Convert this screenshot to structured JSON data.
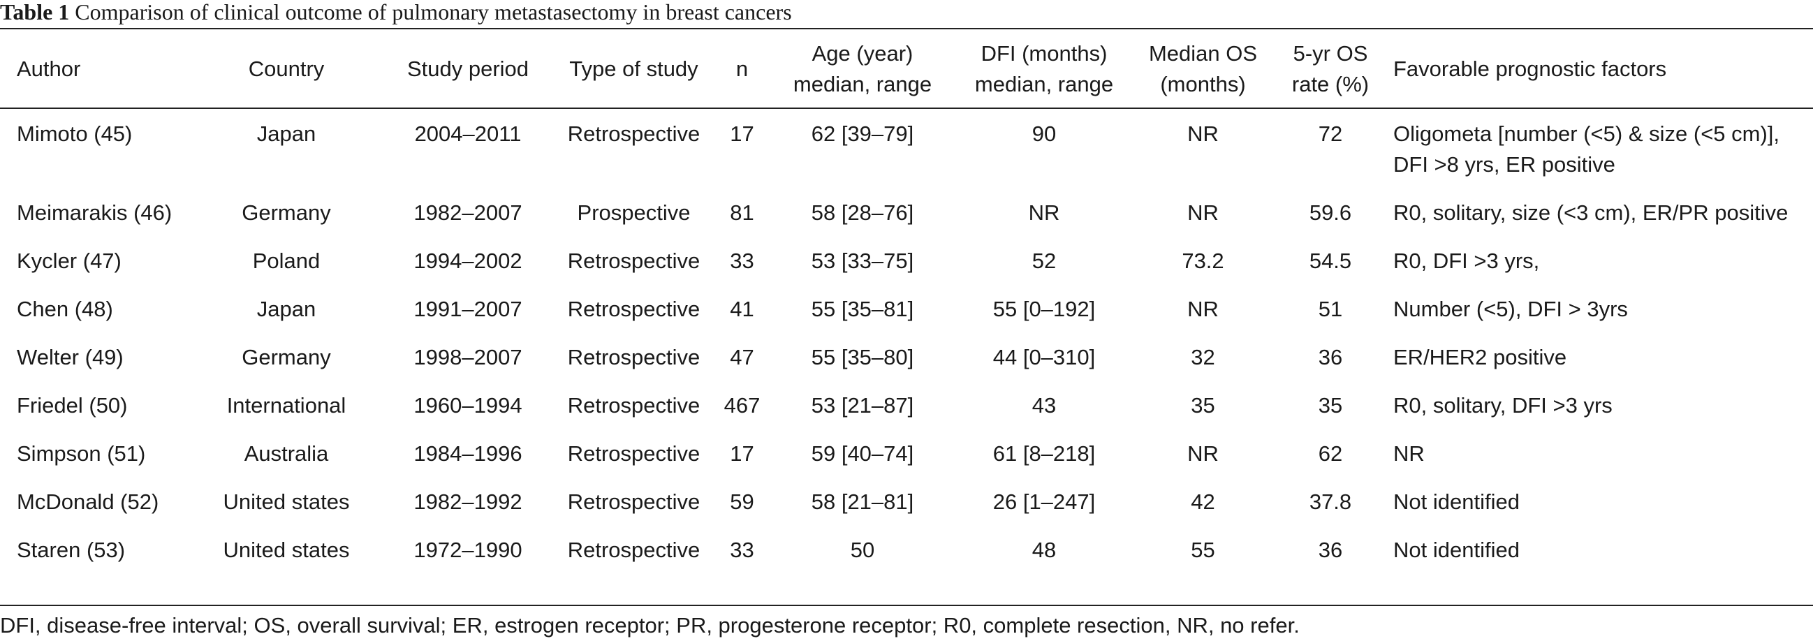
{
  "caption": {
    "label": "Table 1",
    "text": "Comparison of clinical outcome of pulmonary metastasectomy in breast cancers"
  },
  "headers": [
    [
      "Author"
    ],
    [
      "Country"
    ],
    [
      "Study period"
    ],
    [
      "Type of study"
    ],
    [
      "n"
    ],
    [
      "Age (year)",
      "median, range"
    ],
    [
      "DFI (months)",
      "median, range"
    ],
    [
      "Median OS",
      "(months)"
    ],
    [
      "5-yr OS",
      "rate (%)"
    ],
    [
      "Favorable prognostic factors"
    ]
  ],
  "rows": [
    [
      "Mimoto (45)",
      "Japan",
      "2004–2011",
      "Retrospective",
      "17",
      "62 [39–79]",
      "90",
      "NR",
      "72",
      "Oligometa [number (<5) & size (<5 cm)], DFI >8 yrs, ER positive"
    ],
    [
      "Meimarakis (46)",
      "Germany",
      "1982–2007",
      "Prospective",
      "81",
      "58 [28–76]",
      "NR",
      "NR",
      "59.6",
      "R0, solitary, size (<3 cm), ER/PR positive"
    ],
    [
      "Kycler (47)",
      "Poland",
      "1994–2002",
      "Retrospective",
      "33",
      "53 [33–75]",
      "52",
      "73.2",
      "54.5",
      "R0, DFI >3 yrs,"
    ],
    [
      "Chen (48)",
      "Japan",
      "1991–2007",
      "Retrospective",
      "41",
      "55 [35–81]",
      "55 [0–192]",
      "NR",
      "51",
      "Number (<5), DFI > 3yrs"
    ],
    [
      "Welter (49)",
      "Germany",
      "1998–2007",
      "Retrospective",
      "47",
      "55 [35–80]",
      "44 [0–310]",
      "32",
      "36",
      "ER/HER2 positive"
    ],
    [
      "Friedel (50)",
      "International",
      "1960–1994",
      "Retrospective",
      "467",
      "53 [21–87]",
      "43",
      "35",
      "35",
      "R0, solitary, DFI >3 yrs"
    ],
    [
      "Simpson (51)",
      "Australia",
      "1984–1996",
      "Retrospective",
      "17",
      "59 [40–74]",
      "61 [8–218]",
      "NR",
      "62",
      "NR"
    ],
    [
      "McDonald (52)",
      "United states",
      "1982–1992",
      "Retrospective",
      "59",
      "58 [21–81]",
      "26 [1–247]",
      "42",
      "37.8",
      "Not identified"
    ],
    [
      "Staren (53)",
      "United states",
      "1972–1990",
      "Retrospective",
      "33",
      "50",
      "48",
      "55",
      "36",
      "Not identified"
    ]
  ],
  "footnote": "DFI, disease-free interval; OS, overall survival; ER, estrogen receptor; PR, progesterone receptor; R0, complete resection, NR, no refer."
}
